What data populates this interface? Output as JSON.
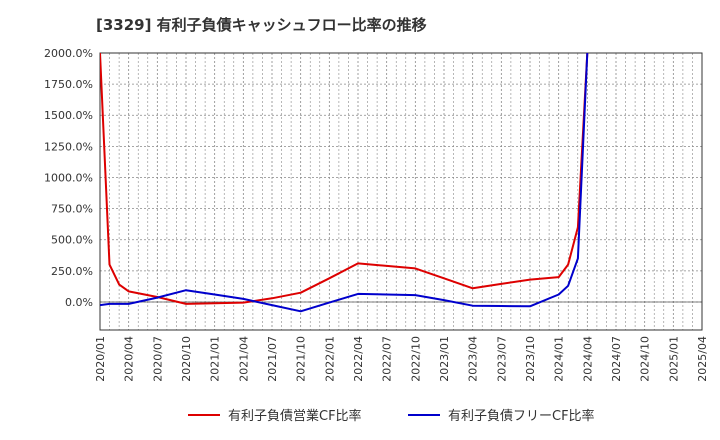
{
  "chart_data": {
    "type": "line",
    "title": "[3329]  有利子負債キャッシュフロー比率の推移",
    "x": [
      "2020/01",
      "2020/04",
      "2020/07",
      "2020/10",
      "2021/01",
      "2021/04",
      "2021/07",
      "2021/10",
      "2022/01",
      "2022/04",
      "2022/07",
      "2022/10",
      "2023/01",
      "2023/04",
      "2023/07",
      "2023/10",
      "2024/01",
      "2024/04",
      "2024/07",
      "2024/10",
      "2025/01",
      "2025/04"
    ],
    "xlabel": "",
    "ylabel": "",
    "ylim": [
      -225,
      2000
    ],
    "yticks": [
      2000,
      1750,
      1500,
      1250,
      1000,
      750,
      500,
      250,
      0
    ],
    "ytick_labels": [
      "2000.0%",
      "1750.0%",
      "1500.0%",
      "1250.0%",
      "1000.0%",
      "750.0%",
      "500.0%",
      "250.0%",
      "0.0%"
    ],
    "grid": true,
    "legend_position": "bottom",
    "series": [
      {
        "name": "有利子負債営業CF比率",
        "color": "#dd0000",
        "points": [
          [
            0,
            2000
          ],
          [
            0.33,
            300
          ],
          [
            0.67,
            140
          ],
          [
            1,
            85
          ],
          [
            2,
            40
          ],
          [
            3,
            -15
          ],
          [
            4,
            -10
          ],
          [
            5,
            -5
          ],
          [
            6,
            30
          ],
          [
            7,
            75
          ],
          [
            8,
            190
          ],
          [
            9,
            310
          ],
          [
            10,
            290
          ],
          [
            11,
            270
          ],
          [
            12,
            190
          ],
          [
            13,
            110
          ],
          [
            14,
            145
          ],
          [
            15,
            180
          ],
          [
            16,
            200
          ],
          [
            16.33,
            300
          ],
          [
            16.67,
            600
          ],
          [
            17,
            2000
          ]
        ]
      },
      {
        "name": "有利子負債フリーCF比率",
        "color": "#0000cc",
        "points": [
          [
            0,
            -25
          ],
          [
            0.33,
            -15
          ],
          [
            1,
            -15
          ],
          [
            2,
            35
          ],
          [
            3,
            95
          ],
          [
            4,
            60
          ],
          [
            5,
            25
          ],
          [
            6,
            -25
          ],
          [
            7,
            -75
          ],
          [
            8,
            -5
          ],
          [
            9,
            65
          ],
          [
            10,
            60
          ],
          [
            11,
            55
          ],
          [
            12,
            15
          ],
          [
            13,
            -30
          ],
          [
            14,
            -32
          ],
          [
            15,
            -35
          ],
          [
            16,
            60
          ],
          [
            16.33,
            130
          ],
          [
            16.67,
            350
          ],
          [
            17,
            2000
          ]
        ]
      }
    ]
  }
}
